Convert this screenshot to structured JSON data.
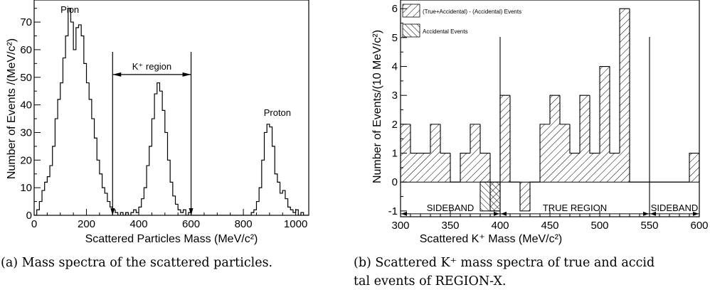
{
  "chart_data": [
    {
      "type": "histogram",
      "xlabel": "Scattered Particles Mass (MeV/c²)",
      "ylabel": "Number of Events /(MeV/c²)",
      "xlim": [
        0,
        1050
      ],
      "ylim": [
        0,
        78
      ],
      "xticks": [
        0,
        200,
        400,
        600,
        800,
        1000
      ],
      "yticks": [
        0,
        10,
        20,
        30,
        40,
        50,
        60,
        70
      ],
      "bin_width": 10,
      "bin_start": 0,
      "values": [
        0,
        2,
        5,
        9,
        12,
        14,
        18,
        25,
        35,
        42,
        48,
        57,
        65,
        75,
        70,
        60,
        68,
        69,
        65,
        55,
        48,
        42,
        35,
        28,
        20,
        15,
        10,
        8,
        5,
        3,
        2,
        1,
        0,
        1,
        0,
        1,
        0,
        1,
        2,
        1,
        3,
        6,
        10,
        18,
        25,
        35,
        44,
        48,
        45,
        38,
        30,
        20,
        12,
        7,
        4,
        2,
        1,
        2,
        0,
        1,
        0,
        0,
        0,
        0,
        0,
        0,
        0,
        0,
        0,
        0,
        0,
        0,
        0,
        0,
        0,
        0,
        0,
        0,
        0,
        0,
        0,
        0,
        0,
        1,
        2,
        5,
        10,
        20,
        30,
        33,
        32,
        25,
        15,
        12,
        8,
        9,
        6,
        3,
        2,
        1,
        2,
        0,
        1,
        0,
        0
      ],
      "annotations": [
        {
          "text": "Pion",
          "x": 150,
          "y": 75
        },
        {
          "text": "Proton",
          "x": 930,
          "y": 36
        },
        {
          "text": "K⁺ region",
          "from": 300,
          "to": 600,
          "y": 51
        }
      ],
      "cut_lines": [
        300,
        600
      ],
      "caption": "(a) Mass spectra of the scattered particles."
    },
    {
      "type": "histogram",
      "xlabel": "Scattered K⁺ Mass (MeV/c²)",
      "ylabel": "Number of Events/(10 MeV/c²)",
      "xlim": [
        300,
        600
      ],
      "ylim": [
        -1.2,
        6.3
      ],
      "xticks": [
        300,
        350,
        400,
        450,
        500,
        550,
        600
      ],
      "yticks": [
        -1,
        0,
        1,
        2,
        3,
        4,
        5,
        6
      ],
      "bin_width": 10,
      "series": [
        {
          "name": "(True+Accidental) - (Accidental) Events",
          "bins_start": [
            300,
            310,
            320,
            330,
            340,
            350,
            360,
            370,
            380,
            390,
            400,
            410,
            420,
            430,
            440,
            450,
            460,
            470,
            480,
            490,
            500,
            510,
            520,
            530,
            540,
            550,
            560,
            570,
            580,
            590
          ],
          "values": [
            2,
            1,
            1,
            2,
            1,
            0,
            1,
            2,
            1,
            -1,
            3,
            0,
            -1,
            0,
            2,
            3,
            2,
            1,
            3,
            1,
            4,
            1,
            6,
            0,
            0,
            0,
            0,
            0,
            0,
            1
          ]
        },
        {
          "name": "Accidental Events",
          "bins_start": [
            380,
            390
          ],
          "values": [
            -1,
            -1
          ]
        }
      ],
      "cut_lines": [
        400,
        550
      ],
      "regions": [
        {
          "label": "SIDEBAND",
          "from": 300,
          "to": 400
        },
        {
          "label": "TRUE REGION",
          "from": 400,
          "to": 550
        },
        {
          "label": "SIDEBAND",
          "from": 550,
          "to": 600
        }
      ],
      "legend_position": "top-left",
      "caption_line1": "(b) Scattered K⁺ mass spectra of true and accid",
      "caption_line2": "tal events of REGION-X."
    }
  ]
}
